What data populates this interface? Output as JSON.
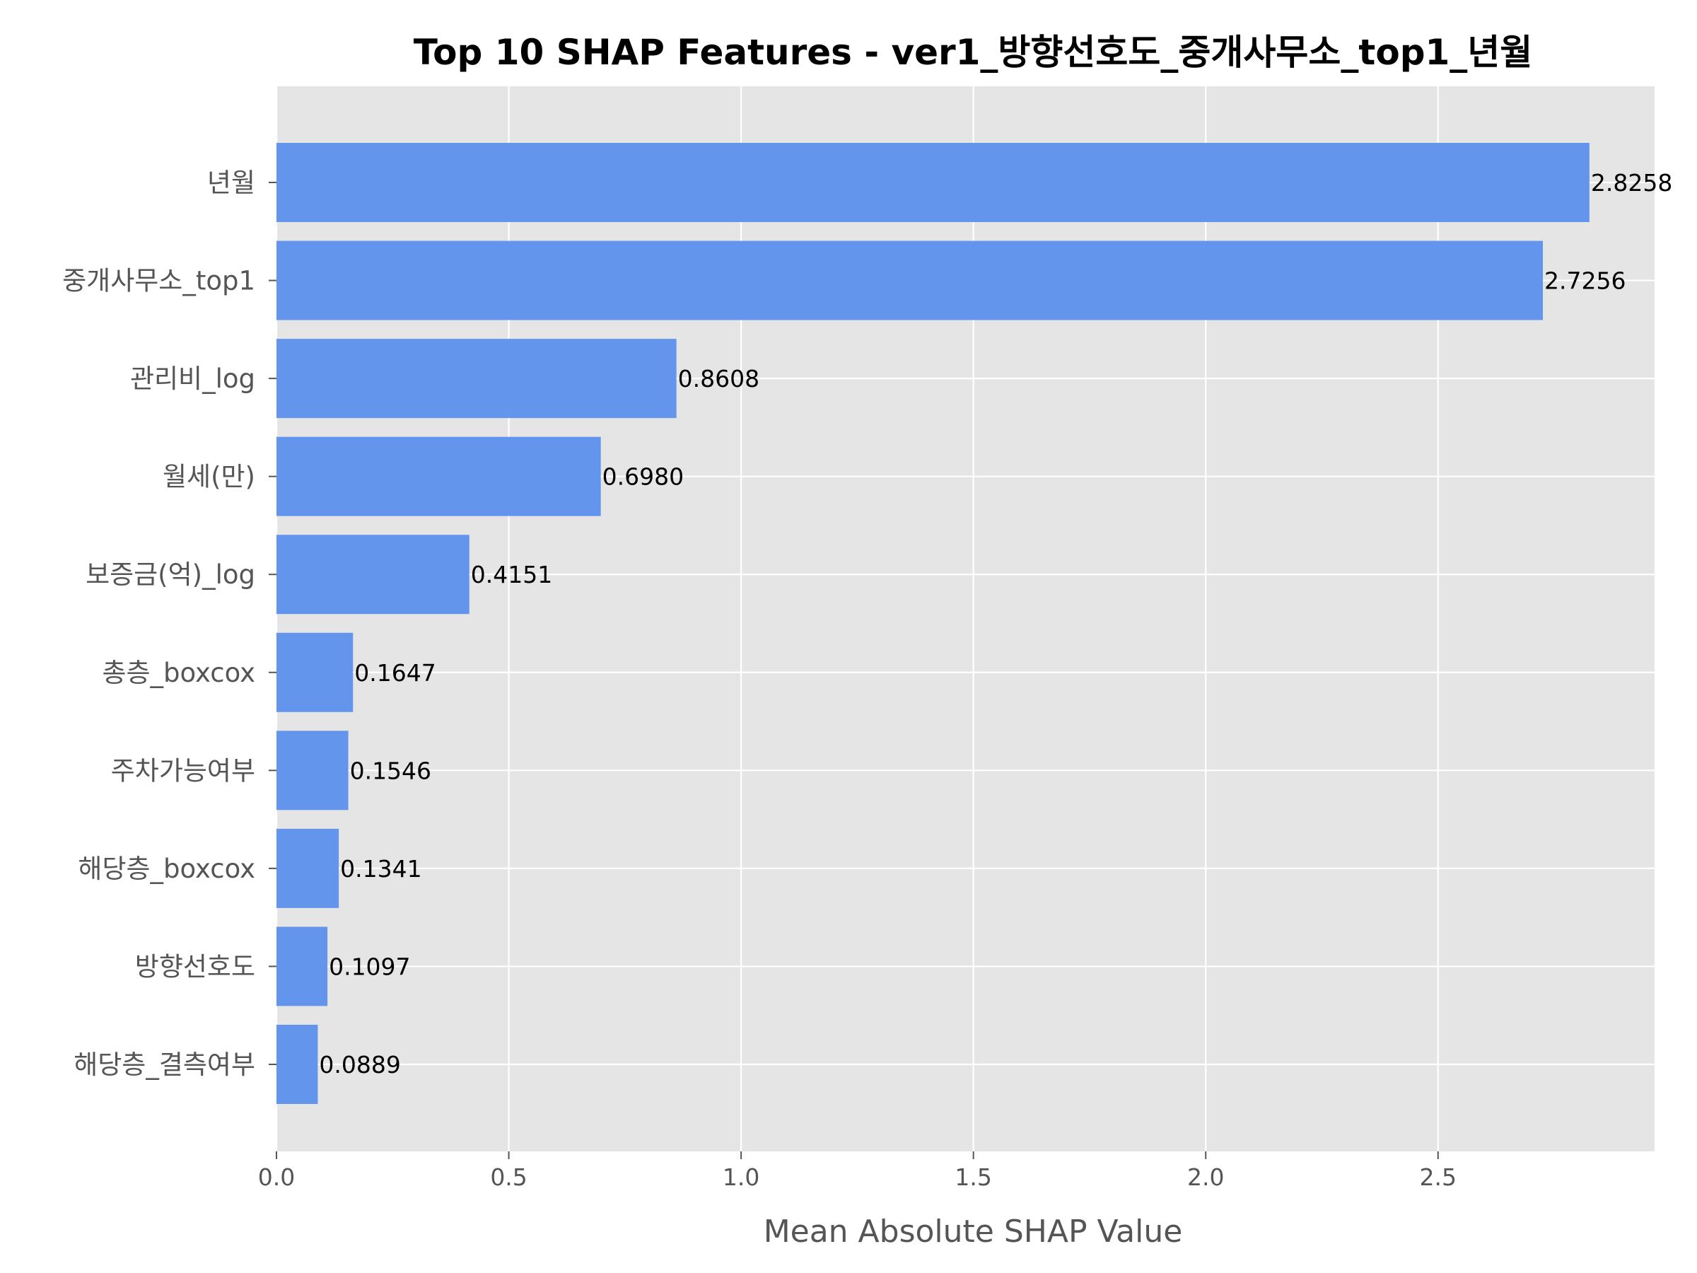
{
  "chart_data": {
    "type": "bar",
    "orientation": "horizontal",
    "title": "Top 10 SHAP Features - ver1_방향선호도_중개사무소_top1_년월",
    "xlabel": "Mean Absolute SHAP Value",
    "ylabel": "",
    "xlim": [
      0,
      2.966
    ],
    "xticks": [
      "0.0",
      "0.5",
      "1.0",
      "1.5",
      "2.0",
      "2.5"
    ],
    "grid": true,
    "bar_color": "#6495ED",
    "background_color": "#E5E5E5",
    "categories": [
      "년월",
      "중개사무소_top1",
      "관리비_log",
      "월세(만)",
      "보증금(억)_log",
      "총층_boxcox",
      "주차가능여부",
      "해당층_boxcox",
      "방향선호도",
      "해당층_결측여부"
    ],
    "values": [
      2.8258,
      2.7256,
      0.8608,
      0.698,
      0.4151,
      0.1647,
      0.1546,
      0.1341,
      0.1097,
      0.0889
    ],
    "value_labels": [
      "2.8258",
      "2.7256",
      "0.8608",
      "0.6980",
      "0.4151",
      "0.1647",
      "0.1546",
      "0.1341",
      "0.1097",
      "0.0889"
    ]
  }
}
